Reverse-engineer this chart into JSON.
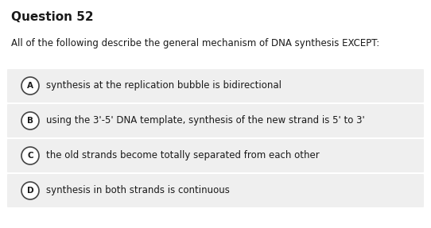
{
  "title": "Question 52",
  "question": "All of the following describe the general mechanism of DNA synthesis EXCEPT:",
  "options": [
    {
      "label": "A",
      "text": "synthesis at the replication bubble is bidirectional"
    },
    {
      "label": "B",
      "text": "using the 3'-5' DNA template, synthesis of the new strand is 5' to 3'"
    },
    {
      "label": "C",
      "text": "the old strands become totally separated from each other"
    },
    {
      "label": "D",
      "text": "synthesis in both strands is continuous"
    }
  ],
  "bg_color": "#ffffff",
  "option_bg_color": "#efefef",
  "title_fontsize": 11,
  "question_fontsize": 8.5,
  "option_fontsize": 8.5,
  "label_fontsize": 7.5,
  "text_color": "#1a1a1a",
  "circle_edge_color": "#444444",
  "fig_width": 5.42,
  "fig_height": 2.87,
  "dpi": 100
}
